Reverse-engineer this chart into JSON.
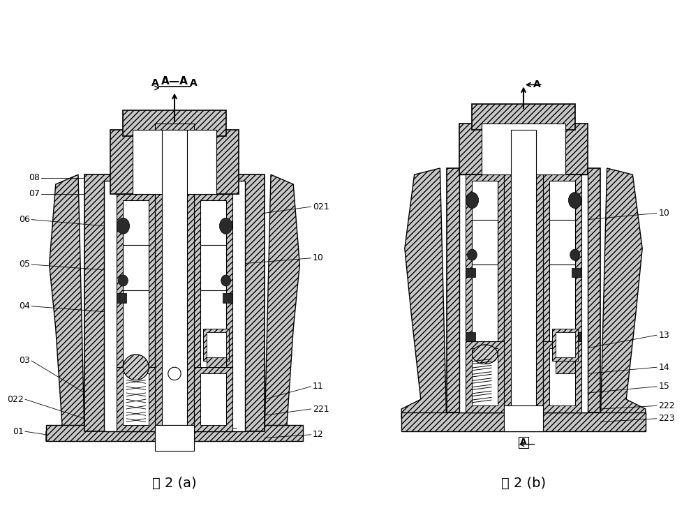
{
  "fig_title_a": "图 2 (a)",
  "fig_title_b": "图 2 (b)",
  "section_label": "A—A",
  "bg_color": "#ffffff",
  "hatch_color": "#555555",
  "font_size_label": 9,
  "font_size_title": 14
}
